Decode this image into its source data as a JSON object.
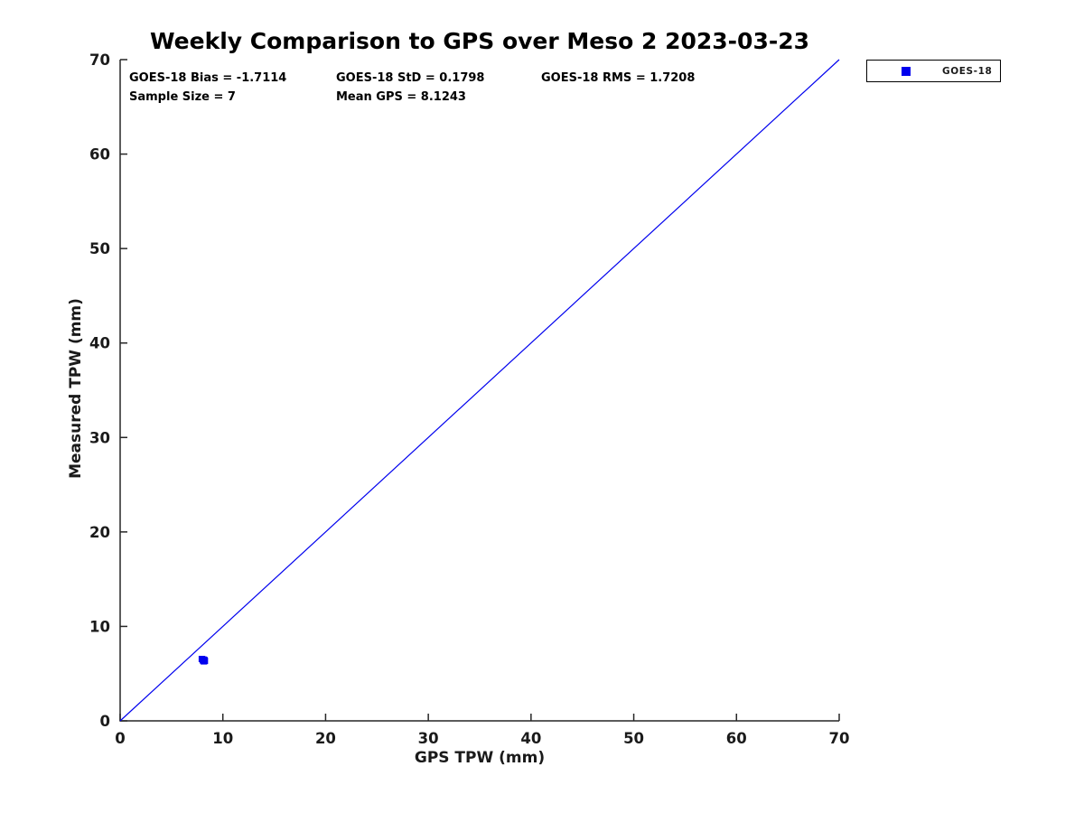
{
  "chart_data": {
    "type": "scatter",
    "title": "Weekly Comparison to GPS over Meso 2 2023-03-23",
    "xlabel": "GPS TPW (mm)",
    "ylabel": "Measured TPW (mm)",
    "xlim": [
      0,
      70
    ],
    "ylim": [
      0,
      70
    ],
    "xticks": [
      0,
      10,
      20,
      30,
      40,
      50,
      60,
      70
    ],
    "yticks": [
      0,
      10,
      20,
      30,
      40,
      50,
      60,
      70
    ],
    "grid": false,
    "box": false,
    "axis_color": "#262626",
    "tick_label_color": "#1a1a1a",
    "series": [
      {
        "name": "GOES-18",
        "type": "scatter",
        "marker": "square",
        "color": "#0000ee",
        "in_legend": true,
        "points": [
          [
            7.95,
            6.55
          ],
          [
            8.05,
            6.4
          ],
          [
            8.1,
            6.5
          ],
          [
            8.15,
            6.3
          ],
          [
            8.2,
            6.45
          ],
          [
            8.25,
            6.35
          ],
          [
            8.17,
            6.34
          ]
        ]
      },
      {
        "name": "1:1 line",
        "type": "line",
        "color": "#0000ee",
        "in_legend": false,
        "points": [
          [
            0,
            0
          ],
          [
            70,
            70
          ]
        ]
      }
    ],
    "legend": {
      "position": "top-right-outside",
      "items": [
        {
          "label": "GOES-18",
          "marker": "square",
          "color": "#0000ee"
        }
      ]
    },
    "annotations": [
      {
        "text": "GOES-18 Bias = -1.7114",
        "row": 1,
        "col": 1
      },
      {
        "text": "GOES-18 StD = 0.1798",
        "row": 1,
        "col": 2
      },
      {
        "text": "GOES-18 RMS = 1.7208",
        "row": 1,
        "col": 3
      },
      {
        "text": "Sample Size = 7",
        "row": 2,
        "col": 1
      },
      {
        "text": "Mean GPS = 8.1243",
        "row": 2,
        "col": 2
      }
    ],
    "stats": {
      "goes18_bias": -1.7114,
      "goes18_std": 0.1798,
      "goes18_rms": 1.7208,
      "sample_size": 7,
      "mean_gps": 8.1243
    }
  }
}
